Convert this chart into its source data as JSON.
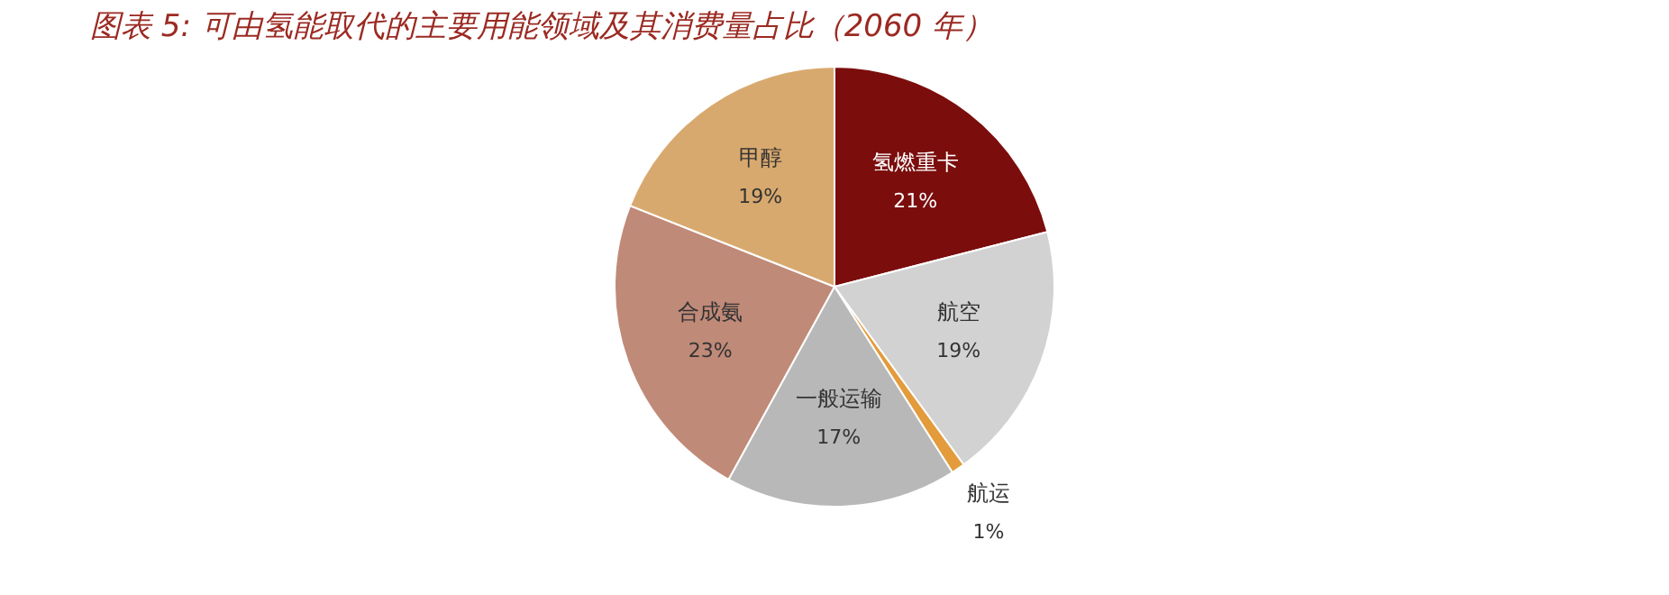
{
  "chart_data": {
    "type": "pie",
    "title": "图表 5: 可由氢能取代的主要用能领域及其消费量占比（2060 年）",
    "categories": [
      "氢燃重卡",
      "航空",
      "航运",
      "一般运输",
      "合成氨",
      "甲醇"
    ],
    "values": [
      21,
      19,
      1,
      17,
      23,
      19
    ],
    "value_labels": [
      "21%",
      "19%",
      "1%",
      "17%",
      "23%",
      "19%"
    ],
    "colors": [
      "#7b0d0d",
      "#d2d2d2",
      "#e39b3c",
      "#b8b8b8",
      "#c08a78",
      "#d8a96e"
    ],
    "legend": false
  }
}
